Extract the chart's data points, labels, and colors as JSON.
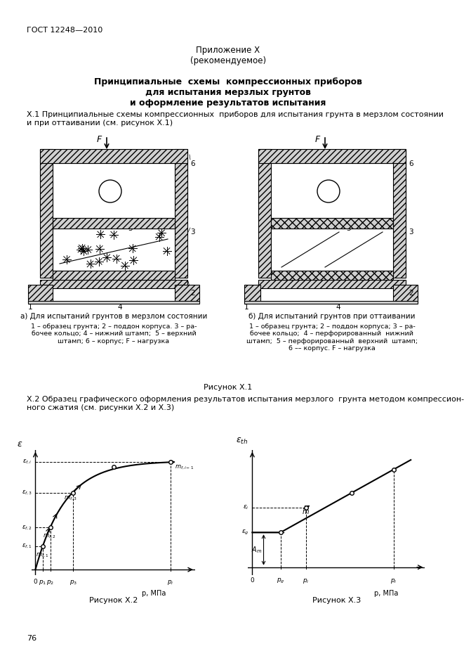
{
  "page_title_left": "ГОСТ 12248—2010",
  "appendix_title": "Приложение Х\n(рекомендуемое)",
  "main_title": "Принципиальные  схемы  компрессионных приборов\nдля испытания мерзлых грунтов\nи оформление результатов испытания",
  "section_x1": "Х.1 Принципиальные схемы компрессионных  приборов для испытания грунта в мерзлом состоянии\nи при оттаивании (см. рисунок Х.1)",
  "caption_a": "а) Для испытаний грунтов в мерзлом состоянии",
  "caption_a_detail": "1 – образец грунта; 2 – поддон корпуса. 3 – ра-\nбочее кольцо; 4 – нижний штамп;  5 – верхний\nштамп; 6 – корпус; F – нагрузка",
  "caption_b": "б) Для испытаний грунтов при оттаивании",
  "caption_b_detail": "1 – образец грунта; 2 – поддон корпуса; 3 – ра-\nбочее кольцо;  4 – перфорированный  нижний\nштамп;  5 – перфорированный  верхний  штамп;\n6 –– корпус. F – нагрузка",
  "figure_x1_caption": "Рисунок Х.1",
  "section_x2": "Х.2 Образец графического оформления результатов испытания мерзлого  грунта методом компрессион-\nного сжатия (см. рисунки Х.2 и Х.3)",
  "figure_x2_caption": "Рисунок Х.2",
  "figure_x3_caption": "Рисунок Х.3",
  "page_number": "76",
  "bg_color": "#ffffff",
  "line_color": "#000000"
}
